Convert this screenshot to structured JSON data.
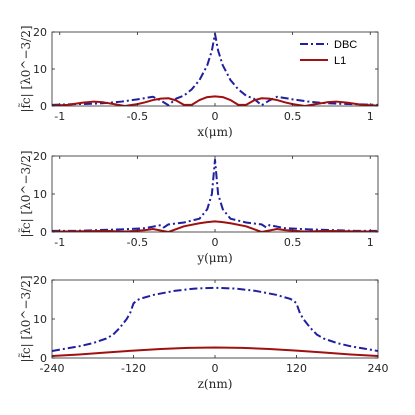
{
  "colors": {
    "DBC": "#1f1fa0",
    "L1": "#a01010"
  },
  "chart_data": [
    {
      "type": "line",
      "xlabel": "x(μm)",
      "ylabel": "|f̃c| [λ0^−3/2]",
      "xlim": [
        -1.05,
        1.05
      ],
      "ylim": [
        0,
        20
      ],
      "xticks": [
        -1,
        -0.5,
        0,
        0.5,
        1
      ],
      "xtick_labels": [
        "-1",
        "-0.5",
        "0",
        "0.5",
        "1"
      ],
      "yticks": [
        0,
        10,
        20
      ],
      "ytick_labels": [
        "0",
        "10",
        "20"
      ],
      "legend": {
        "position": "top-right",
        "entries": [
          "DBC",
          "L1"
        ]
      },
      "series": [
        {
          "name": "DBC",
          "style": "dash-dot",
          "x": [
            -1.05,
            -0.9,
            -0.8,
            -0.7,
            -0.6,
            -0.5,
            -0.4,
            -0.35,
            -0.3,
            -0.25,
            -0.2,
            -0.15,
            -0.1,
            -0.05,
            -0.02,
            0,
            0.02,
            0.05,
            0.1,
            0.15,
            0.2,
            0.25,
            0.3,
            0.35,
            0.4,
            0.5,
            0.6,
            0.7,
            0.8,
            0.9,
            1.05
          ],
          "y": [
            0.3,
            0.5,
            0.6,
            0.8,
            1.2,
            1.8,
            2.5,
            1.5,
            0.2,
            2.0,
            2.8,
            4.5,
            7.0,
            11.0,
            15.0,
            19.5,
            15.0,
            11.0,
            7.0,
            4.5,
            2.8,
            2.0,
            0.2,
            1.5,
            2.5,
            1.8,
            1.2,
            0.8,
            0.6,
            0.5,
            0.3
          ]
        },
        {
          "name": "L1",
          "style": "solid",
          "x": [
            -1.05,
            -0.95,
            -0.85,
            -0.78,
            -0.72,
            -0.65,
            -0.58,
            -0.5,
            -0.45,
            -0.4,
            -0.35,
            -0.3,
            -0.25,
            -0.2,
            -0.15,
            -0.1,
            -0.05,
            0,
            0.05,
            0.1,
            0.15,
            0.2,
            0.25,
            0.3,
            0.35,
            0.4,
            0.45,
            0.5,
            0.58,
            0.65,
            0.72,
            0.78,
            0.85,
            0.95,
            1.05
          ],
          "y": [
            0.1,
            0.3,
            0.9,
            1.2,
            1.0,
            0.5,
            0.0,
            0.5,
            1.0,
            1.6,
            2.0,
            2.1,
            1.5,
            0.3,
            0.3,
            1.6,
            2.4,
            2.6,
            2.4,
            1.6,
            0.3,
            0.3,
            1.5,
            2.1,
            2.0,
            1.6,
            1.0,
            0.5,
            0.0,
            0.5,
            1.0,
            1.2,
            0.9,
            0.3,
            0.1
          ]
        }
      ]
    },
    {
      "type": "line",
      "xlabel": "y(μm)",
      "ylabel": "|f̃c| [λ0^−3/2]",
      "xlim": [
        -1.05,
        1.05
      ],
      "ylim": [
        0,
        20
      ],
      "xticks": [
        -1,
        -0.5,
        0,
        0.5,
        1
      ],
      "xtick_labels": [
        "-1",
        "-0.5",
        "0",
        "0.5",
        "1"
      ],
      "yticks": [
        0,
        10,
        20
      ],
      "ytick_labels": [
        "0",
        "10",
        "20"
      ],
      "series": [
        {
          "name": "DBC",
          "style": "dash-dot",
          "x": [
            -1.05,
            -0.9,
            -0.75,
            -0.6,
            -0.45,
            -0.35,
            -0.33,
            -0.3,
            -0.2,
            -0.1,
            -0.05,
            -0.02,
            0,
            0.02,
            0.05,
            0.1,
            0.2,
            0.3,
            0.33,
            0.35,
            0.45,
            0.6,
            0.75,
            0.9,
            1.05
          ],
          "y": [
            0.3,
            0.3,
            0.5,
            0.7,
            1.0,
            1.8,
            1.2,
            2.0,
            2.5,
            3.5,
            6.0,
            10.0,
            19.0,
            10.0,
            6.0,
            3.5,
            2.5,
            2.0,
            1.2,
            1.8,
            1.0,
            0.7,
            0.5,
            0.3,
            0.3
          ]
        },
        {
          "name": "L1",
          "style": "solid",
          "x": [
            -1.05,
            -0.85,
            -0.7,
            -0.6,
            -0.55,
            -0.45,
            -0.4,
            -0.35,
            -0.3,
            -0.2,
            -0.1,
            -0.05,
            0,
            0.05,
            0.1,
            0.2,
            0.3,
            0.35,
            0.4,
            0.45,
            0.55,
            0.6,
            0.7,
            0.85,
            1.05
          ],
          "y": [
            0.1,
            0.2,
            0.3,
            0.1,
            0.2,
            0.5,
            0.8,
            0.4,
            0.0,
            1.5,
            2.3,
            2.6,
            2.8,
            2.6,
            2.3,
            1.5,
            0.0,
            0.4,
            0.8,
            0.5,
            0.2,
            0.1,
            0.3,
            0.2,
            0.1
          ]
        }
      ]
    },
    {
      "type": "line",
      "xlabel": "z(nm)",
      "ylabel": "|f̃c| [λ0^−3/2]",
      "xlim": [
        -240,
        240
      ],
      "ylim": [
        0,
        20
      ],
      "xticks": [
        -240,
        -120,
        0,
        120,
        240
      ],
      "xtick_labels": [
        "-240",
        "-120",
        "0",
        "120",
        "240"
      ],
      "yticks": [
        0,
        10,
        20
      ],
      "ytick_labels": [
        "0",
        "10",
        "20"
      ],
      "series": [
        {
          "name": "DBC",
          "style": "dash-dot",
          "x": [
            -240,
            -220,
            -200,
            -180,
            -160,
            -150,
            -140,
            -130,
            -125,
            -120,
            -115,
            -110,
            -90,
            -60,
            -30,
            0,
            30,
            60,
            90,
            110,
            115,
            120,
            125,
            130,
            140,
            150,
            160,
            180,
            200,
            220,
            240
          ],
          "y": [
            1.8,
            2.4,
            3.0,
            3.8,
            5.0,
            6.0,
            7.8,
            10.0,
            11.5,
            14.0,
            14.8,
            15.2,
            16.2,
            17.2,
            17.8,
            18.0,
            17.8,
            17.2,
            16.2,
            15.2,
            14.8,
            14.0,
            11.5,
            10.0,
            7.8,
            6.0,
            5.0,
            3.8,
            3.0,
            2.4,
            1.8
          ]
        },
        {
          "name": "L1",
          "style": "solid",
          "x": [
            -240,
            -200,
            -160,
            -120,
            -80,
            -40,
            0,
            40,
            80,
            120,
            160,
            200,
            240
          ],
          "y": [
            0.5,
            0.9,
            1.4,
            1.9,
            2.3,
            2.6,
            2.7,
            2.6,
            2.3,
            1.9,
            1.4,
            0.9,
            0.5
          ]
        }
      ]
    }
  ]
}
